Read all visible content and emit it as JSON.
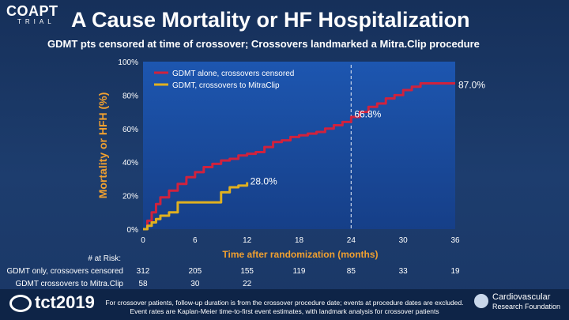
{
  "header": {
    "logo_text": "COAPT",
    "logo_sub": "TRIAL",
    "title": "A   Cause Mortality or HF Hospitalization",
    "subtitle": "GDMT pts censored at time of crossover; Crossovers landmarked a  Mitra.Clip procedure"
  },
  "chart_data": {
    "type": "line",
    "title": "A   Cause Mortality or HF Hospitalization",
    "xlabel": "Time after randomization (months)",
    "ylabel": "Mortality or HFH (%)",
    "xlim": [
      0,
      36
    ],
    "ylim": [
      0,
      100
    ],
    "x_ticks": [
      "0",
      "6",
      "12",
      "18",
      "24",
      "30",
      "36"
    ],
    "y_ticks": [
      "0%",
      "20%",
      "40%",
      "60%",
      "80%",
      "100%"
    ],
    "landmark_x": 24,
    "series": [
      {
        "name": "GDMT alone, crossovers censored",
        "color": "#d0223d",
        "x": [
          0,
          0.5,
          1,
          1.5,
          2,
          3,
          4,
          5,
          6,
          7,
          8,
          9,
          10,
          11,
          12,
          13,
          14,
          15,
          16,
          17,
          18,
          19,
          20,
          21,
          22,
          23,
          24,
          25,
          26,
          27,
          28,
          29,
          30,
          31,
          32,
          33,
          34,
          35,
          36
        ],
        "y": [
          0,
          5,
          10,
          15,
          19,
          23,
          27,
          31,
          34,
          37,
          39,
          41,
          42,
          44,
          45,
          46,
          49,
          52,
          53,
          55,
          56,
          57,
          58,
          60,
          62,
          64,
          67,
          70,
          73,
          75,
          78,
          80,
          83,
          85,
          87,
          87,
          87,
          87,
          87
        ]
      },
      {
        "name": "GDMT, crossovers to MitraClip",
        "color": "#e0b020",
        "x": [
          0,
          0.5,
          1,
          1.5,
          2,
          3,
          4,
          8,
          9,
          10,
          11,
          12
        ],
        "y": [
          0,
          2,
          4,
          6,
          8,
          10,
          16,
          16,
          22,
          25,
          26,
          28
        ]
      }
    ],
    "annotations": [
      {
        "text": "87.0%",
        "x": 36,
        "y": 87
      },
      {
        "text": "66.8%",
        "x": 24,
        "y": 66.8
      },
      {
        "text": "28.0%",
        "x": 12,
        "y": 28
      }
    ],
    "legend_position": "top-left"
  },
  "risk_table": {
    "header": "# at Risk:",
    "rows": [
      {
        "label": "GDMT only, crossovers censored",
        "values": [
          "312",
          "205",
          "155",
          "119",
          "85",
          "33",
          "19"
        ]
      },
      {
        "label": "GDMT crossovers to Mitra.Clip",
        "values": [
          "58",
          "30",
          "22"
        ]
      }
    ]
  },
  "footer": {
    "tct_logo": "tct2019",
    "footnote_line1": "For crossover patients, follow-up duration is from the crossover procedure date; events at procedure dates are excluded.",
    "footnote_line2": "Event rates are Kaplan-Meier time-to-first event estimates, with landmark analysis for crossover patients",
    "crf_line1": "Cardiovascular",
    "crf_line2": "Research Foundation"
  },
  "colors": {
    "red": "#d0223d",
    "yellow": "#e0b020",
    "plot_bg": "#1b4ea0",
    "axis_label": "#f0a030"
  }
}
